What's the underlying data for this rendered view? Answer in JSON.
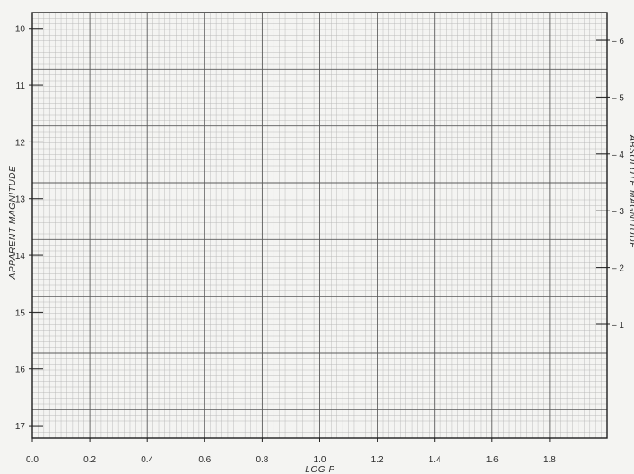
{
  "chart_data": {
    "type": "scatter",
    "xlabel": "LOG P",
    "ylabel_left": "APPARENT MAGNITUDE",
    "ylabel_right": "ABSOLUTE MAGNITUDE",
    "xlim": [
      0.0,
      2.0
    ],
    "ylim_left": [
      10,
      17
    ],
    "ylim_right": [
      -6,
      -1
    ],
    "left_y_reversed": true,
    "right_y_reversed": true,
    "x_ticks": [
      0.0,
      0.2,
      0.4,
      0.6,
      0.8,
      1.0,
      1.2,
      1.4,
      1.6,
      1.8
    ],
    "x_tick_labels": [
      "0.0",
      "0.2",
      "0.4",
      "0.6",
      "0.8",
      "1.0",
      "1.2",
      "1.4",
      "1.6",
      "1.8"
    ],
    "y_left_ticks": [
      10,
      11,
      12,
      13,
      14,
      15,
      16,
      17
    ],
    "y_left_tick_labels": [
      "10",
      "11",
      "12",
      "13",
      "14",
      "15",
      "16",
      "17"
    ],
    "y_right_ticks": [
      -6,
      -5,
      -4,
      -3,
      -2,
      -1
    ],
    "y_right_tick_labels": [
      "– 6",
      "– 5",
      "– 4",
      "– 3",
      "– 2",
      "– 1"
    ],
    "grid": true,
    "grid_minor_per_major": 10,
    "series": [],
    "colors": {
      "paper": "#f4f4f2",
      "grid_minor": "#b6b6b6",
      "grid_major": "#5a5a5a",
      "frame": "#1e1e1e",
      "text": "#2a2a2a"
    }
  }
}
